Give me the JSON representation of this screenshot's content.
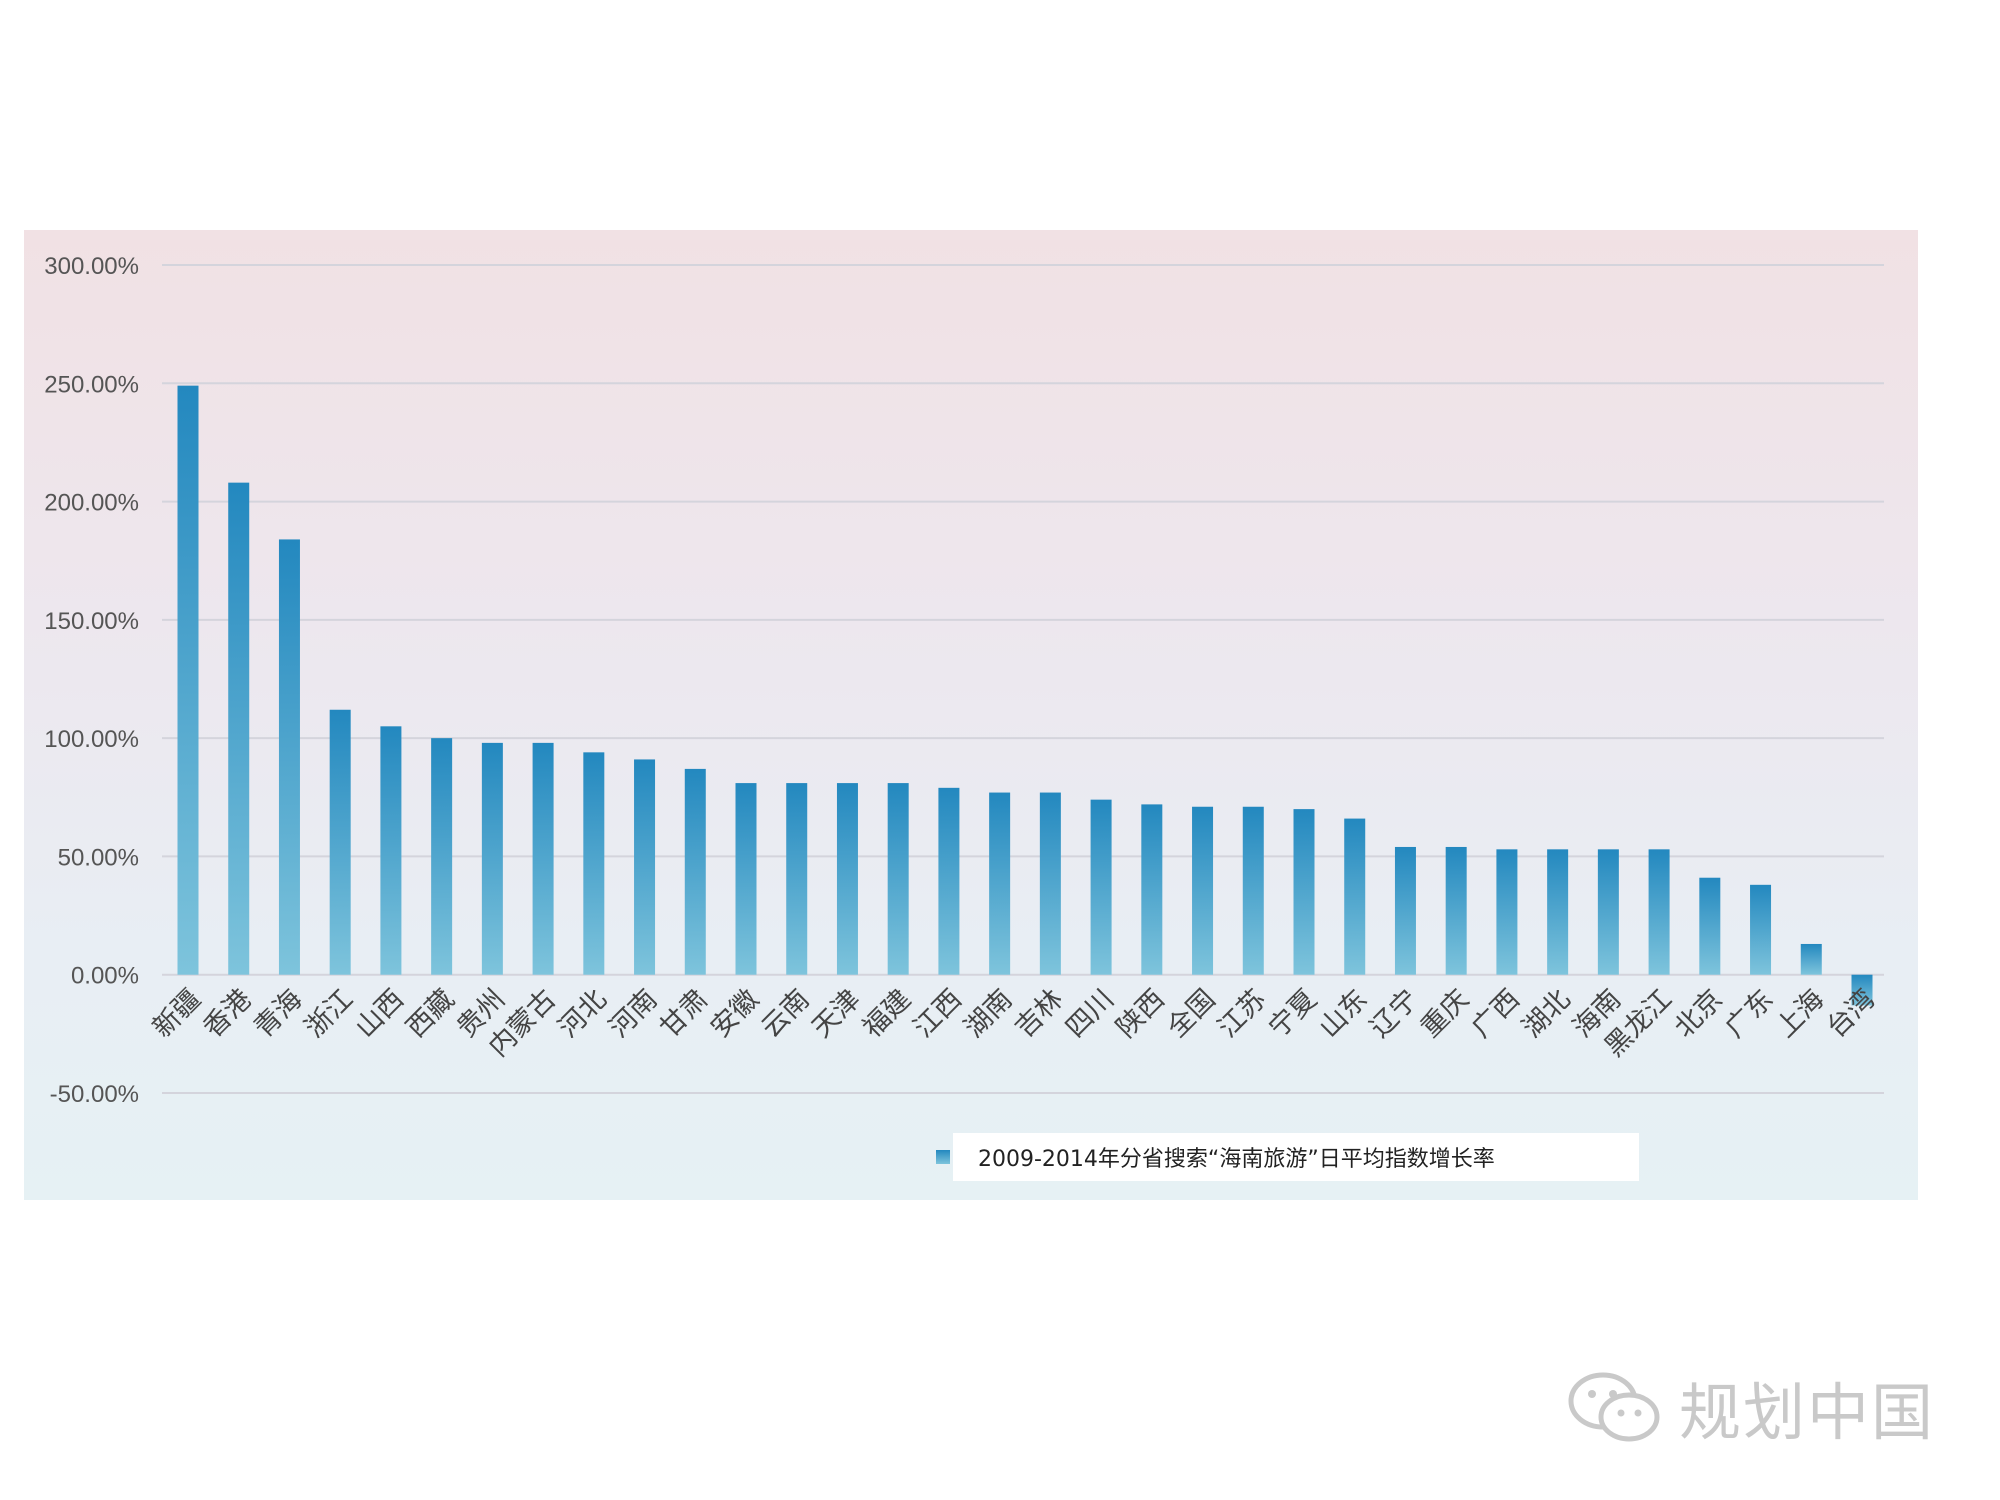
{
  "chart_data": {
    "type": "bar",
    "categories": [
      "新疆",
      "香港",
      "青海",
      "浙江",
      "山西",
      "西藏",
      "贵州",
      "内蒙古",
      "河北",
      "河南",
      "甘肃",
      "安徽",
      "云南",
      "天津",
      "福建",
      "江西",
      "湖南",
      "吉林",
      "四川",
      "陕西",
      "全国",
      "江苏",
      "宁夏",
      "山东",
      "辽宁",
      "重庆",
      "广西",
      "湖北",
      "海南",
      "黑龙江",
      "北京",
      "广东",
      "上海",
      "台湾"
    ],
    "series": [
      {
        "name": "2009-2014年分省搜索“海南旅游”日平均指数增长率",
        "values": [
          249,
          208,
          184,
          112,
          105,
          100,
          98,
          98,
          94,
          91,
          87,
          81,
          81,
          81,
          81,
          79,
          77,
          77,
          74,
          72,
          71,
          71,
          70,
          66,
          54,
          54,
          53,
          53,
          53,
          53,
          41,
          38,
          13,
          -13
        ]
      }
    ],
    "yticks": [
      "300.00%",
      "250.00%",
      "200.00%",
      "150.00%",
      "100.00%",
      "50.00%",
      "0.00%",
      "-50.00%"
    ],
    "ylim": [
      -50,
      300
    ],
    "grid": true,
    "legend_position": "bottom",
    "colors": {
      "bar_top": "#2388bf",
      "bar_bottom": "#7ec4dc",
      "grid": "#d4d4dc"
    }
  },
  "watermark": {
    "text": "规划中国"
  }
}
